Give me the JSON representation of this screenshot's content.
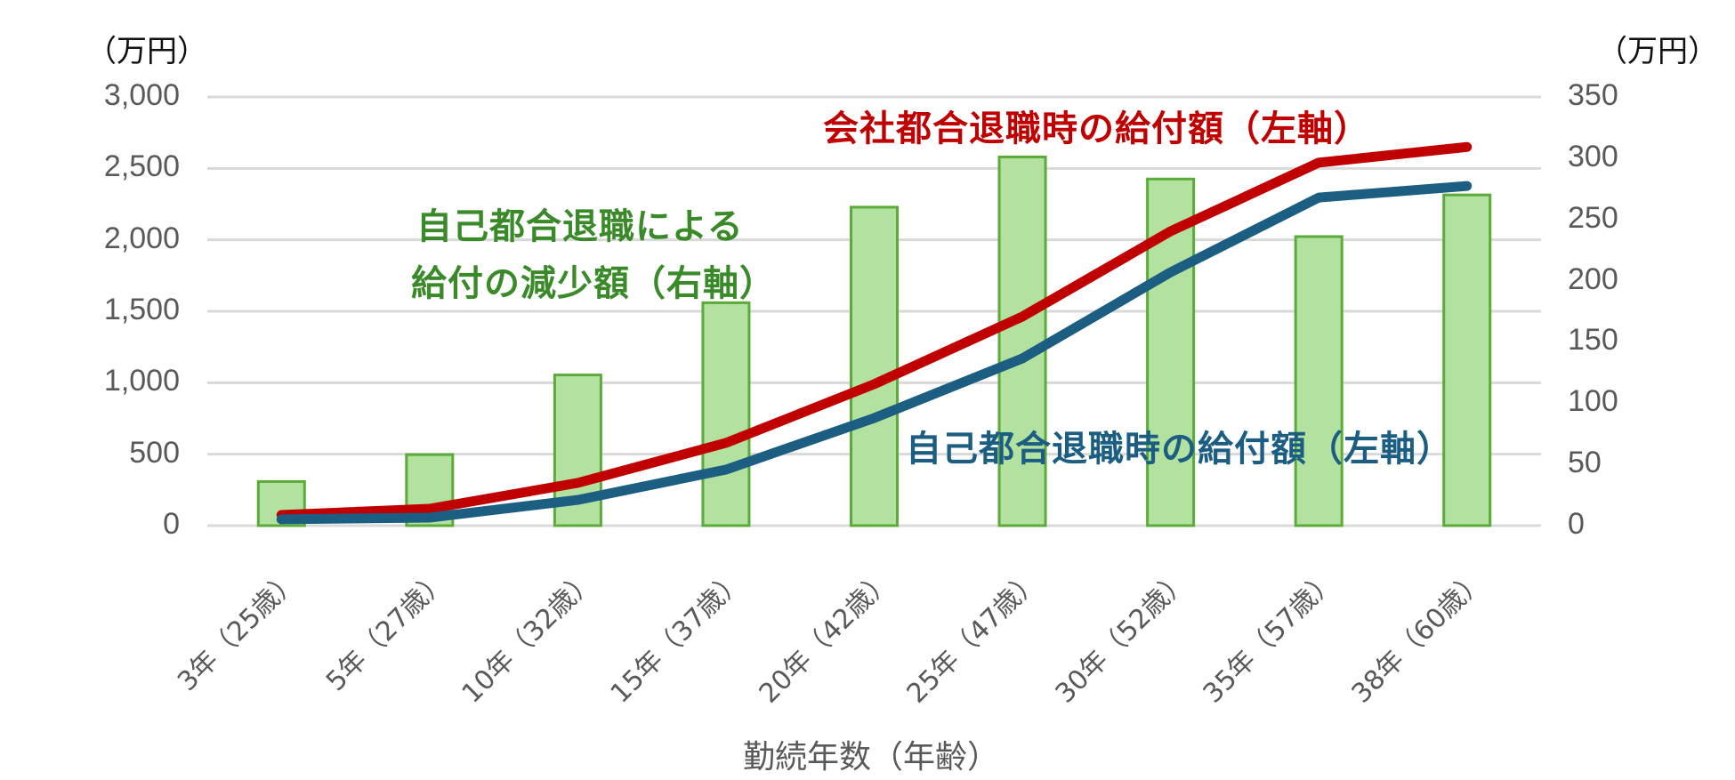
{
  "chart_data": {
    "type": "bar+line",
    "title": "",
    "xlabel": "勤続年数（年齢）",
    "ylabel_left_unit": "（万円）",
    "ylabel_right_unit": "（万円）",
    "left_axis": {
      "ylim": [
        0,
        3000
      ],
      "ticks": [
        "0",
        "500",
        "1,000",
        "1,500",
        "2,000",
        "2,500",
        "3,000"
      ],
      "tick_values": [
        0,
        500,
        1000,
        1500,
        2000,
        2500,
        3000
      ]
    },
    "right_axis": {
      "ylim": [
        0,
        350
      ],
      "ticks": [
        "0",
        "50",
        "100",
        "150",
        "200",
        "250",
        "300",
        "350"
      ],
      "tick_values": [
        0,
        50,
        100,
        150,
        200,
        250,
        300,
        350
      ]
    },
    "grid": true,
    "categories": [
      "3年（25歳）",
      "5年（27歳）",
      "10年（32歳）",
      "15年（37歳）",
      "20年（42歳）",
      "25年（47歳）",
      "30年（52歳）",
      "35年（57歳）",
      "38年（60歳）"
    ],
    "series": [
      {
        "name": "自己都合退職による給付の減少額（右軸）",
        "type": "bar",
        "axis": "right",
        "color": "#b3e2a0",
        "border": "#5aab3a",
        "values": [
          36,
          58,
          123,
          182,
          260,
          301,
          283,
          236,
          270
        ]
      },
      {
        "name": "会社都合退職時の給付額（左軸）",
        "type": "line",
        "axis": "left",
        "color": "#c00000",
        "values": [
          75,
          118,
          299,
          579,
          990,
          1463,
          2060,
          2540,
          2650
        ]
      },
      {
        "name": "自己都合退職時の給付額（左軸）",
        "type": "line",
        "axis": "left",
        "color": "#1b5e82",
        "values": [
          44,
          56,
          180,
          392,
          753,
          1170,
          1773,
          2296,
          2377
        ]
      }
    ],
    "annotations": [
      {
        "id": "company",
        "lines": [
          "会社都合退職時の給付額（左軸）"
        ],
        "color": "#c00000"
      },
      {
        "id": "reduction",
        "lines": [
          "自己都合退職による",
          "給付の減少額（右軸）"
        ],
        "color": "#3a8a2a"
      },
      {
        "id": "self",
        "lines": [
          "自己都合退職時の給付額（左軸）"
        ],
        "color": "#1b5e82"
      }
    ]
  }
}
